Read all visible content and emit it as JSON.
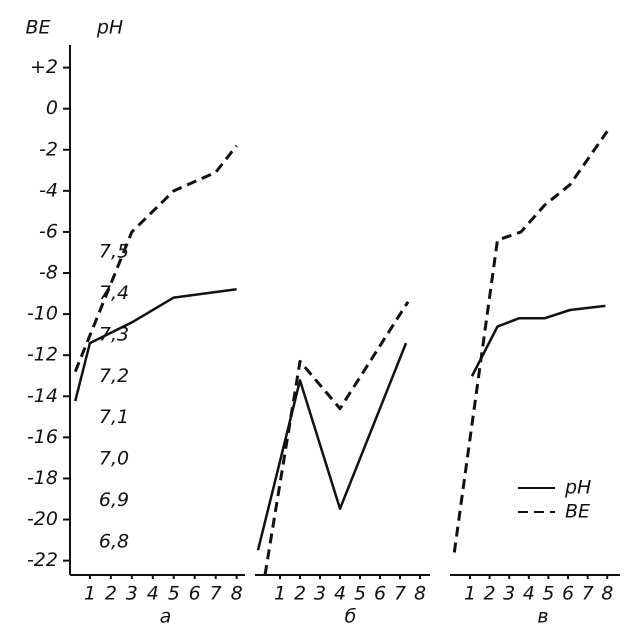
{
  "chart_data": [
    {
      "type": "line",
      "panel": "а",
      "ylabel": "BE",
      "y2label": "pH",
      "ylim": [
        -22.7,
        3.1
      ],
      "yticks": [
        {
          "value": 2,
          "label": "+2"
        },
        0,
        -2,
        -4,
        -6,
        -8,
        -10,
        -12,
        -14,
        -16,
        -18,
        -20,
        -22
      ],
      "y2lim": [
        6.72,
        8.0
      ],
      "y2ticks": [
        {
          "value": 7.5,
          "label": "7,5"
        },
        {
          "value": 7.4,
          "label": "7,4"
        },
        {
          "value": 7.3,
          "label": "7,3"
        },
        {
          "value": 7.2,
          "label": "7,2"
        },
        {
          "value": 7.1,
          "label": "7,1"
        },
        {
          "value": 7.0,
          "label": "7,0"
        },
        {
          "value": 6.9,
          "label": "6,9"
        },
        {
          "value": 6.8,
          "label": "6,8"
        }
      ],
      "xlim": [
        0.05,
        8.4
      ],
      "xticks": [
        1,
        2,
        3,
        4,
        5,
        6,
        7,
        8
      ],
      "series": [
        {
          "name": "pH",
          "axis": "y2",
          "style": "solid",
          "color": "#111111",
          "x": [
            0.3,
            1,
            3,
            5,
            8
          ],
          "values": [
            7.14,
            7.28,
            7.33,
            7.39,
            7.41
          ]
        },
        {
          "name": "BE",
          "style": "dashed",
          "color": "#111111",
          "x": [
            0.3,
            3,
            5,
            7,
            8
          ],
          "values": [
            -12.8,
            -6.0,
            -4.0,
            -3.1,
            -1.8
          ]
        }
      ]
    },
    {
      "type": "line",
      "panel": "б",
      "xlim": [
        -0.25,
        8.5
      ],
      "xticks": [
        1,
        2,
        3,
        4,
        5,
        6,
        7,
        8
      ],
      "series": [
        {
          "name": "pH",
          "axis": "y2",
          "style": "solid",
          "color": "#111111",
          "x": [
            -0.1,
            2,
            4,
            7.3
          ],
          "values": [
            6.78,
            7.19,
            6.88,
            7.28
          ]
        },
        {
          "name": "BE",
          "style": "dashed",
          "color": "#111111",
          "x": [
            0.25,
            2,
            4,
            7.4
          ],
          "values": [
            -22.7,
            -12.3,
            -14.6,
            -9.4
          ]
        }
      ]
    },
    {
      "type": "line",
      "panel": "в",
      "xlim": [
        -0.02,
        8.65
      ],
      "xticks": [
        1,
        2,
        3,
        4,
        5,
        6,
        7,
        8
      ],
      "series": [
        {
          "name": "pH",
          "axis": "y2",
          "style": "solid",
          "color": "#111111",
          "x": [
            1.1,
            2.4,
            3.5,
            4.8,
            6.1,
            7.9
          ],
          "values": [
            7.2,
            7.32,
            7.34,
            7.34,
            7.36,
            7.37
          ]
        },
        {
          "name": "BE",
          "style": "dashed",
          "color": "#111111",
          "x": [
            0.2,
            2.4,
            3.6,
            4.8,
            6.1,
            8
          ],
          "values": [
            -21.6,
            -6.4,
            -6.0,
            -4.7,
            -3.7,
            -1.1
          ]
        }
      ]
    }
  ]
}
